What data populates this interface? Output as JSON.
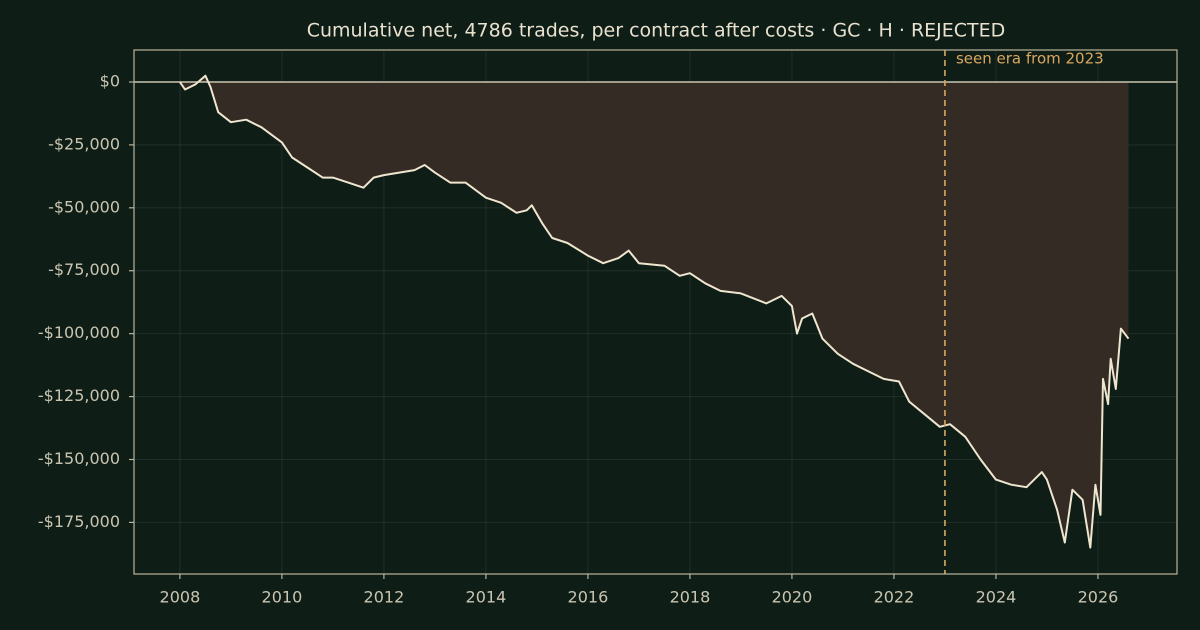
{
  "chart_data": {
    "type": "line",
    "title": "Cumulative net, 4786 trades, per contract after costs  ·  GC · H · REJECTED",
    "x": [
      2008.0,
      2008.1,
      2008.3,
      2008.5,
      2008.6,
      2008.75,
      2009.0,
      2009.3,
      2009.6,
      2010.0,
      2010.2,
      2010.5,
      2010.8,
      2011.0,
      2011.3,
      2011.6,
      2011.8,
      2012.0,
      2012.3,
      2012.6,
      2012.8,
      2013.0,
      2013.3,
      2013.6,
      2014.0,
      2014.3,
      2014.6,
      2014.8,
      2014.9,
      2015.1,
      2015.3,
      2015.6,
      2016.0,
      2016.3,
      2016.6,
      2016.8,
      2017.0,
      2017.5,
      2017.8,
      2018.0,
      2018.3,
      2018.6,
      2019.0,
      2019.5,
      2019.8,
      2020.0,
      2020.1,
      2020.2,
      2020.4,
      2020.6,
      2020.9,
      2021.2,
      2021.5,
      2021.8,
      2022.1,
      2022.3,
      2022.6,
      2022.9,
      2023.1,
      2023.4,
      2023.7,
      2024.0,
      2024.3,
      2024.6,
      2024.9,
      2025.0,
      2025.2,
      2025.35,
      2025.5,
      2025.7,
      2025.85,
      2025.95,
      2026.05,
      2026.1,
      2026.2,
      2026.25,
      2026.35,
      2026.45,
      2026.6
    ],
    "series": [
      {
        "name": "Cumulative net",
        "color": "#efe6d0",
        "values": [
          0,
          -3000,
          -1000,
          2500,
          -2000,
          -12000,
          -16000,
          -15000,
          -18000,
          -24000,
          -30000,
          -34000,
          -38000,
          -38000,
          -40000,
          -42000,
          -38000,
          -37000,
          -36000,
          -35000,
          -33000,
          -36000,
          -40000,
          -40000,
          -46000,
          -48000,
          -52000,
          -51000,
          -49000,
          -56000,
          -62000,
          -64000,
          -69000,
          -72000,
          -70000,
          -67000,
          -72000,
          -73000,
          -77000,
          -76000,
          -80000,
          -83000,
          -84000,
          -88000,
          -85000,
          -89000,
          -100000,
          -94000,
          -92000,
          -102000,
          -108000,
          -112000,
          -115000,
          -118000,
          -119000,
          -127000,
          -132000,
          -137000,
          -136000,
          -141000,
          -150000,
          -158000,
          -160000,
          -161000,
          -155000,
          -158000,
          -170000,
          -183000,
          -162000,
          -166000,
          -185000,
          -160000,
          -172000,
          -118000,
          -128000,
          -110000,
          -122000,
          -98000,
          -102000
        ]
      }
    ],
    "fill_color": "#332b24",
    "xlim": [
      2007.1,
      2027.55
    ],
    "xticks": [
      2008,
      2010,
      2012,
      2014,
      2016,
      2018,
      2020,
      2022,
      2024,
      2026
    ],
    "ylim": [
      -195500,
      12700
    ],
    "yticks": [
      {
        "value": 0,
        "label": "$0"
      },
      {
        "value": -25000,
        "label": "-$25,000"
      },
      {
        "value": -50000,
        "label": "-$50,000"
      },
      {
        "value": -75000,
        "label": "-$75,000"
      },
      {
        "value": -100000,
        "label": "-$100,000"
      },
      {
        "value": -125000,
        "label": "-$125,000"
      },
      {
        "value": -150000,
        "label": "-$150,000"
      },
      {
        "value": -175000,
        "label": "-$175,000"
      }
    ],
    "grid": true,
    "vline": {
      "x": 2023,
      "label": "seen era from 2023",
      "color": "#d9a860"
    }
  }
}
